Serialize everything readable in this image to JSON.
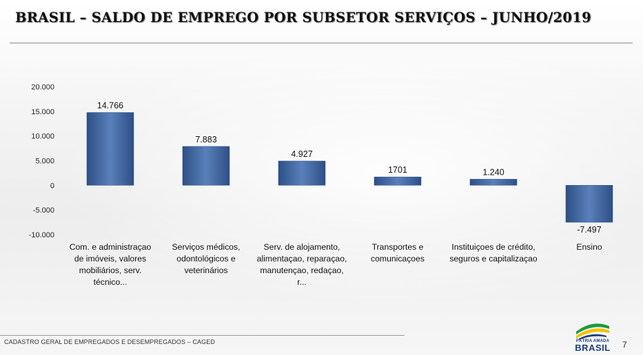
{
  "title": "BRASIL – SALDO DE EMPREGO POR SUBSETOR SERVIÇOS – JUNHO/2019",
  "footer": {
    "source": "CADASTRO GERAL DE EMPREGADOS E DESEMPREGADOS – CAGED",
    "page_number": "7"
  },
  "logo": {
    "tagline": "PÁTRIA AMADA",
    "name": "BRASIL"
  },
  "colors": {
    "bar": "#4a6ea8",
    "bar_dark": "#2d4f85",
    "logo_green": "#1f9a3a",
    "logo_yellow": "#f2c400",
    "logo_blue": "#1d3f7a"
  },
  "chart_data": {
    "type": "bar",
    "categories": [
      [
        "Com. e administraçao",
        "de imóveis, valores",
        "mobiliários, serv.",
        "técnico..."
      ],
      [
        "Serviços médicos,",
        "odontológicos e",
        "veterinários"
      ],
      [
        "Serv. de alojamento,",
        "alimentaçao, reparaçao,",
        "manutençao, redaçao,",
        "r..."
      ],
      [
        "Transportes e",
        "comunicaçoes"
      ],
      [
        "Instituiçoes de crédito,",
        "seguros e capitalizaçao"
      ],
      [
        "Ensino"
      ]
    ],
    "values": [
      14766,
      7883,
      4927,
      1701,
      1240,
      -7497
    ],
    "data_labels": [
      "14.766",
      "7.883",
      "4.927",
      "1701",
      "1.240",
      "-7.497"
    ],
    "ylim": [
      -10000,
      20000
    ],
    "yticks": [
      20000,
      15000,
      10000,
      5000,
      0,
      -5000,
      -10000
    ],
    "ytick_labels": [
      "20.000",
      "15.000",
      "10.000",
      "5.000",
      "0",
      "-5.000",
      "-10.000"
    ],
    "grid": false,
    "legend": "none"
  }
}
